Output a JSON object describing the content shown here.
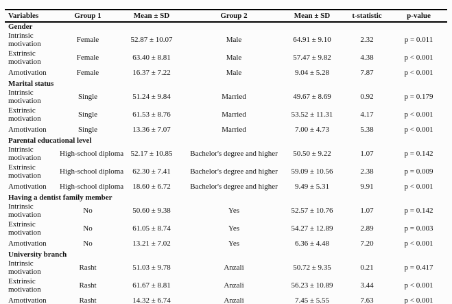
{
  "table": {
    "columns": [
      "Variables",
      "Group 1",
      "Mean ± SD",
      "Group 2",
      "Mean ± SD",
      "t-statistic",
      "p-value"
    ],
    "sections": [
      {
        "title": "Gender",
        "rows": [
          {
            "variable": "Intrinsic motivation",
            "group1": "Female",
            "mean1": "52.87 ± 10.07",
            "group2": "Male",
            "mean2": "64.91 ± 9.10",
            "t": "2.32",
            "p": "p = 0.011"
          },
          {
            "variable": "Extrinsic motivation",
            "group1": "Female",
            "mean1": "63.40 ± 8.81",
            "group2": "Male",
            "mean2": "57.47 ± 9.82",
            "t": "4.38",
            "p": "p < 0.001"
          },
          {
            "variable": "Amotivation",
            "group1": "Female",
            "mean1": "16.37 ± 7.22",
            "group2": "Male",
            "mean2": "9.04 ± 5.28",
            "t": "7.87",
            "p": "p < 0.001"
          }
        ]
      },
      {
        "title": "Marital status",
        "rows": [
          {
            "variable": "Intrinsic motivation",
            "group1": "Single",
            "mean1": "51.24 ± 9.84",
            "group2": "Married",
            "mean2": "49.67 ± 8.69",
            "t": "0.92",
            "p": "p = 0.179"
          },
          {
            "variable": "Extrinsic motivation",
            "group1": "Single",
            "mean1": "61.53 ± 8.76",
            "group2": "Married",
            "mean2": "53.52 ± 11.31",
            "t": "4.17",
            "p": "p < 0.001"
          },
          {
            "variable": "Amotivation",
            "group1": "Single",
            "mean1": "13.36 ± 7.07",
            "group2": "Married",
            "mean2": "7.00 ± 4.73",
            "t": "5.38",
            "p": "p < 0.001"
          }
        ]
      },
      {
        "title": "Parental educational level",
        "rows": [
          {
            "variable": "Intrinsic motivation",
            "group1": "High-school diploma",
            "mean1": "52.17 ± 10.85",
            "group2": "Bachelor's degree and higher",
            "mean2": "50.50 ± 9.22",
            "t": "1.07",
            "p": "p = 0.142"
          },
          {
            "variable": "Extrinsic motivation",
            "group1": "High-school diploma",
            "mean1": "62.30 ± 7.41",
            "group2": "Bachelor's degree and higher",
            "mean2": "59.09 ± 10.56",
            "t": "2.38",
            "p": "p = 0.009"
          },
          {
            "variable": "Amotivation",
            "group1": "High-school diploma",
            "mean1": "18.60 ± 6.72",
            "group2": "Bachelor's degree and higher",
            "mean2": "9.49 ± 5.31",
            "t": "9.91",
            "p": "p < 0.001"
          }
        ]
      },
      {
        "title": "Having a dentist family member",
        "rows": [
          {
            "variable": "Intrinsic motivation",
            "group1": "No",
            "mean1": "50.60 ± 9.38",
            "group2": "Yes",
            "mean2": "52.57 ± 10.76",
            "t": "1.07",
            "p": "p = 0.142"
          },
          {
            "variable": "Extrinsic motivation",
            "group1": "No",
            "mean1": "61.05 ± 8.74",
            "group2": "Yes",
            "mean2": "54.27 ± 12.89",
            "t": "2.89",
            "p": "p = 0.003"
          },
          {
            "variable": "Amotivation",
            "group1": "No",
            "mean1": "13.21 ± 7.02",
            "group2": "Yes",
            "mean2": "6.36 ± 4.48",
            "t": "7.20",
            "p": "p < 0.001"
          }
        ]
      },
      {
        "title": "University branch",
        "rows": [
          {
            "variable": "Intrinsic motivation",
            "group1": "Rasht",
            "mean1": "51.03 ± 9.78",
            "group2": "Anzali",
            "mean2": "50.72 ± 9.35",
            "t": "0.21",
            "p": "p = 0.417"
          },
          {
            "variable": "Extrinsic motivation",
            "group1": "Rasht",
            "mean1": "61.67 ± 8.81",
            "group2": "Anzali",
            "mean2": "56.23 ± 10.89",
            "t": "3.44",
            "p": "p < 0.001"
          },
          {
            "variable": "Amotivation",
            "group1": "Rasht",
            "mean1": "14.32 ± 6.74",
            "group2": "Anzali",
            "mean2": "7.45 ± 5.55",
            "t": "7.63",
            "p": "p < 0.001"
          }
        ]
      }
    ]
  }
}
